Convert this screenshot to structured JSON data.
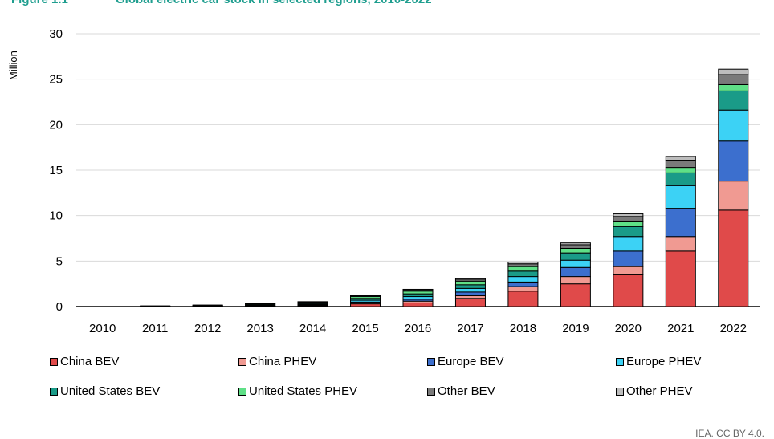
{
  "figure_number": "Figure 1.1",
  "title": "Global electric car stock in selected regions, 2010-2022",
  "credit": "IEA. CC BY 4.0.",
  "chart_data": {
    "type": "bar",
    "stacked": true,
    "ylabel": "Million",
    "xlabel": "",
    "ylim": [
      0,
      30
    ],
    "yticks": [
      0,
      5,
      10,
      15,
      20,
      25,
      30
    ],
    "grid": "horizontal",
    "legend_position": "bottom",
    "categories": [
      "2010",
      "2011",
      "2012",
      "2013",
      "2014",
      "2015",
      "2016",
      "2017",
      "2018",
      "2019",
      "2020",
      "2021",
      "2022"
    ],
    "series": [
      {
        "name": "China BEV",
        "color": "#e04a4a",
        "values": [
          0.0,
          0.01,
          0.02,
          0.03,
          0.08,
          0.3,
          0.4,
          0.9,
          1.7,
          2.5,
          3.5,
          6.1,
          10.6
        ]
      },
      {
        "name": "China PHEV",
        "color": "#f09a92",
        "values": [
          0.0,
          0.0,
          0.0,
          0.01,
          0.03,
          0.1,
          0.2,
          0.3,
          0.5,
          0.8,
          0.9,
          1.6,
          3.2
        ]
      },
      {
        "name": "Europe BEV",
        "color": "#3c6fce",
        "values": [
          0.0,
          0.01,
          0.02,
          0.04,
          0.06,
          0.1,
          0.2,
          0.4,
          0.5,
          1.0,
          1.7,
          3.1,
          4.4
        ]
      },
      {
        "name": "Europe PHEV",
        "color": "#3cd2f5",
        "values": [
          0.0,
          0.0,
          0.01,
          0.03,
          0.06,
          0.2,
          0.3,
          0.4,
          0.6,
          0.8,
          1.6,
          2.5,
          3.4
        ]
      },
      {
        "name": "United States BEV",
        "color": "#1a9b88",
        "values": [
          0.0,
          0.01,
          0.03,
          0.07,
          0.1,
          0.2,
          0.3,
          0.4,
          0.6,
          0.8,
          1.1,
          1.4,
          2.1
        ]
      },
      {
        "name": "United States PHEV",
        "color": "#5fe087",
        "values": [
          0.0,
          0.02,
          0.05,
          0.1,
          0.12,
          0.2,
          0.3,
          0.4,
          0.5,
          0.5,
          0.6,
          0.6,
          0.7
        ]
      },
      {
        "name": "Other BEV",
        "color": "#7a7a7a",
        "values": [
          0.0,
          0.03,
          0.04,
          0.06,
          0.08,
          0.1,
          0.1,
          0.2,
          0.3,
          0.4,
          0.5,
          0.8,
          1.1
        ]
      },
      {
        "name": "Other PHEV",
        "color": "#bdbdbd",
        "values": [
          0.0,
          0.0,
          0.0,
          0.01,
          0.01,
          0.05,
          0.1,
          0.1,
          0.2,
          0.2,
          0.3,
          0.4,
          0.6
        ]
      }
    ]
  }
}
